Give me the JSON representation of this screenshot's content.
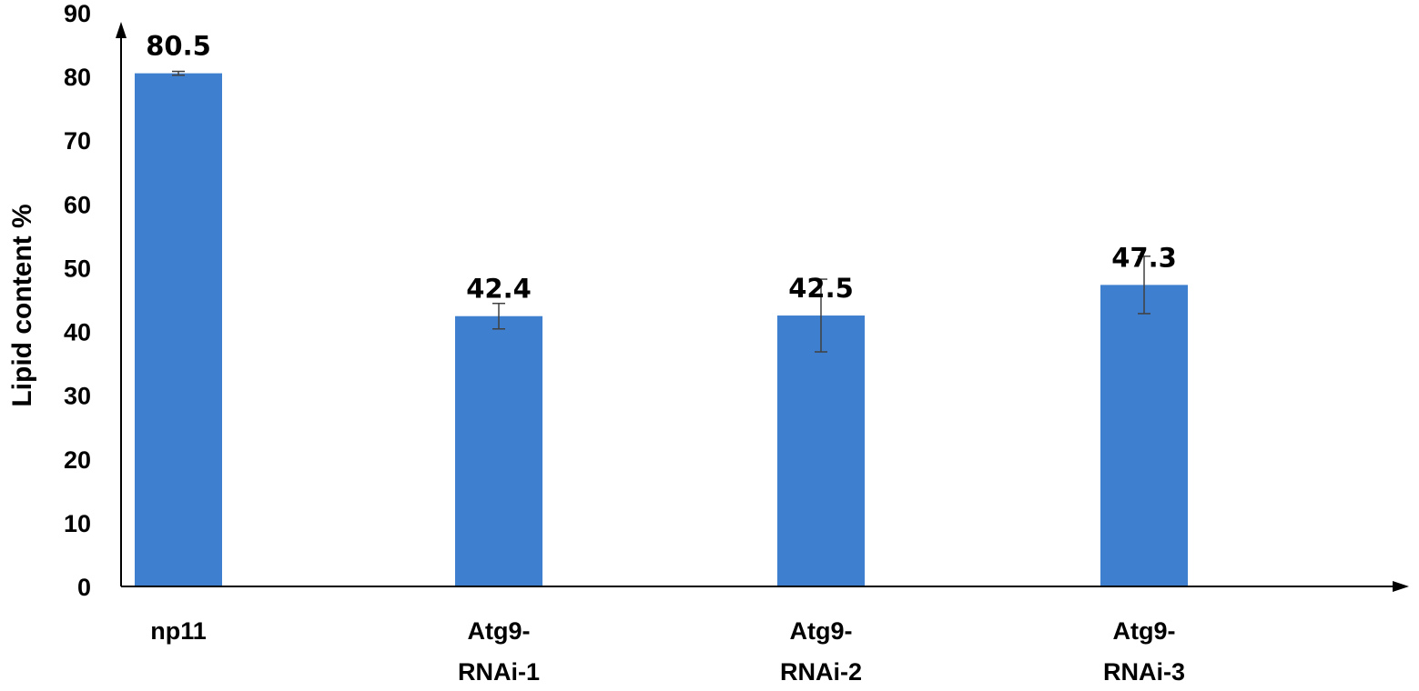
{
  "chart_data": {
    "type": "bar",
    "title": "",
    "xlabel": "",
    "ylabel": "Lipid content %",
    "ylim": [
      0,
      90
    ],
    "yticks": [
      0,
      10,
      20,
      30,
      40,
      50,
      60,
      70,
      80,
      90
    ],
    "grid": false,
    "legend": "none",
    "categories": [
      [
        "np11"
      ],
      [
        "Atg9-",
        "RNAi-1"
      ],
      [
        "Atg9-",
        "RNAi-2"
      ],
      [
        "Atg9-",
        "RNAi-3"
      ]
    ],
    "values": [
      80.5,
      42.4,
      42.5,
      47.3
    ],
    "data_labels": [
      "80.5",
      "42.4",
      "42.5",
      "47.3"
    ],
    "error": [
      0.3,
      2.0,
      5.7,
      4.5
    ],
    "bar_color": "#3f7fcf",
    "error_color": "#404040",
    "axis_color": "#000000"
  }
}
